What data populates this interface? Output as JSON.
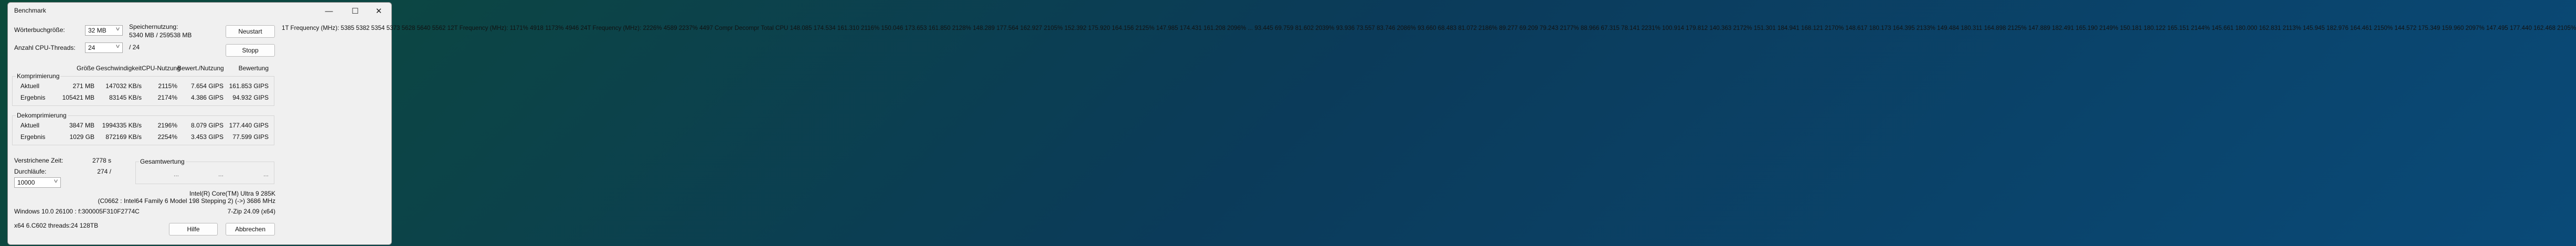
{
  "window": {
    "title": "Benchmark",
    "minimize": "—",
    "maximize": "☐",
    "close": "✕"
  },
  "settings": {
    "dict_label": "Wörterbuchgröße:",
    "dict_value": "32 MB",
    "threads_label": "Anzahl CPU-Threads:",
    "threads_value": "24",
    "threads_max": "/ 24",
    "mem_label": "Speichernutzung:",
    "mem_value": "5340 MB / 259538 MB"
  },
  "buttons": {
    "restart": "Neustart",
    "stop": "Stopp",
    "help": "Hilfe",
    "cancel": "Abbrechen"
  },
  "columns": [
    "Größe",
    "Geschwindigkeit",
    "CPU-Nutzung",
    "Bewert./Nutzung",
    "Bewertung"
  ],
  "compression": {
    "label": "Komprimierung",
    "rows": [
      [
        "Aktuell",
        "271 MB",
        "147032 KB/s",
        "2115%",
        "7.654 GIPS",
        "161.853 GIPS"
      ],
      [
        "Ergebnis",
        "105421 MB",
        "83145 KB/s",
        "2174%",
        "4.386 GIPS",
        "94.932 GIPS"
      ]
    ]
  },
  "decompression": {
    "label": "Dekomprimierung",
    "rows": [
      [
        "Aktuell",
        "3847 MB",
        "1994335 KB/s",
        "2196%",
        "8.079 GIPS",
        "177.440 GIPS"
      ],
      [
        "Ergebnis",
        "1029 GB",
        "872169 KB/s",
        "2254%",
        "3.453 GIPS",
        "77.599 GIPS"
      ]
    ]
  },
  "elapsed_label": "Verstrichene Zeit:",
  "elapsed_value": "2778 s",
  "passes_label": "Durchläufe:",
  "passes_value": "274 /",
  "passes_select": "10000",
  "total": {
    "label": "Gesamtwertung",
    "values": [
      "...",
      "...",
      "..."
    ]
  },
  "cpu_line1": "Intel(R) Core(TM) Ultra 9 285K",
  "cpu_line2": "(C0662 : Intel64 Family 6 Model 198 Stepping 2) (->) 3686 MHz",
  "os_line": "Windows 10.0 26100 : f:300005F310F2774C",
  "version": "7-Zip 24.09 (x64)",
  "sys_line": "x64 6.C602 threads:24 128TB",
  "log": "1T Frequency (MHz):\n 5385 5382 5354 5373 5628 5640 5562\n12T Frequency (MHz):\n 1171% 4918 1173% 4946\n24T Frequency (MHz):\n 2226% 4589 2237% 4497\nCompr Decompr Total   CPU\n148.085  174.534  161.310  2116%\n150.046  173.653  161.850  2128%\n148.289  177.564  162.927  2105%\n152.392  175.920  164.156  2125%\n147.985  174.431  161.208  2096%\n...\n93.445  69.759  81.602  2039%\n93.936  73.557  83.746  2086%\n93.660  68.483  81.072  2186%\n89.277  69.209  79.243  2177%\n88.966  67.315  78.141  2231%\n100.914  179.812  140.363  2172%\n151.301  184.941  168.121  2170%\n148.617  180.173  164.395  2133%\n149.484  180.311  164.898  2125%\n147.889  182.491  165.190  2149%\n150.181  180.122  165.151  2144%\n145.661  180.000  162.831  2113%\n145.945  182.976  164.461  2150%\n144.572  175.349  159.960  2097%\n147.495  177.440  162.468  2105%"
}
